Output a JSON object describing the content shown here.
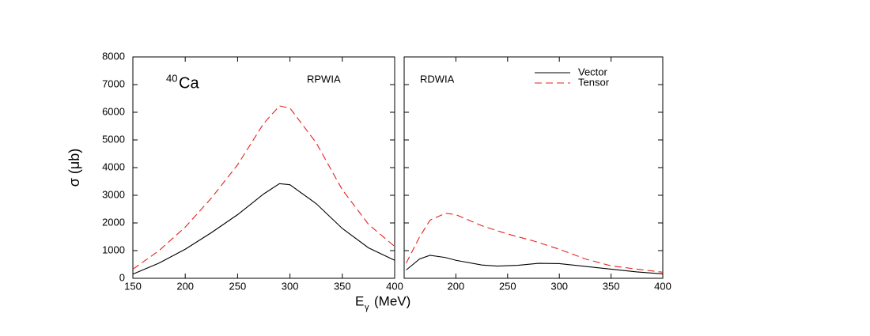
{
  "chart_data": [
    {
      "type": "line",
      "annotation_sup": "40",
      "annotation": "Ca",
      "label": "RPWIA",
      "y_label": "σ (μb)",
      "x_label": "E",
      "x_label_sub": "γ",
      "x_label_unit": "(MeV)",
      "xlim": [
        150,
        400
      ],
      "xticks": [
        150,
        200,
        250,
        300,
        350,
        400
      ],
      "ylim": [
        0,
        8000
      ],
      "yticks": [
        0,
        1000,
        2000,
        3000,
        4000,
        5000,
        6000,
        7000,
        8000
      ],
      "series": [
        {
          "name": "Vector",
          "color": "#000000",
          "linestyle": "solid",
          "x": [
            150,
            175,
            200,
            225,
            250,
            275,
            290,
            300,
            325,
            350,
            375,
            400
          ],
          "values": [
            150,
            550,
            1050,
            1650,
            2300,
            3050,
            3420,
            3380,
            2700,
            1800,
            1100,
            650
          ]
        },
        {
          "name": "Tensor",
          "color": "#e8201a",
          "linestyle": "dashed",
          "x": [
            150,
            175,
            200,
            225,
            250,
            275,
            290,
            300,
            325,
            350,
            375,
            400
          ],
          "values": [
            330,
            1000,
            1850,
            2900,
            4100,
            5600,
            6230,
            6150,
            4900,
            3200,
            1950,
            1150
          ]
        }
      ]
    },
    {
      "type": "line",
      "label": "RDWIA",
      "legend": "upper right",
      "xlim": [
        150,
        400
      ],
      "xticks": [
        200,
        250,
        300,
        350,
        400
      ],
      "ylim": [
        0,
        8000
      ],
      "series": [
        {
          "name": "Vector",
          "color": "#000000",
          "linestyle": "solid",
          "x": [
            152,
            165,
            175,
            190,
            200,
            225,
            240,
            260,
            280,
            300,
            325,
            350,
            375,
            400
          ],
          "values": [
            300,
            700,
            830,
            750,
            650,
            480,
            440,
            470,
            540,
            530,
            430,
            330,
            230,
            160
          ]
        },
        {
          "name": "Tensor",
          "color": "#e8201a",
          "linestyle": "dashed",
          "x": [
            152,
            165,
            175,
            190,
            200,
            225,
            250,
            275,
            300,
            325,
            350,
            375,
            400
          ],
          "values": [
            550,
            1500,
            2100,
            2350,
            2300,
            1900,
            1600,
            1350,
            1050,
            700,
            450,
            330,
            220
          ]
        }
      ]
    }
  ]
}
